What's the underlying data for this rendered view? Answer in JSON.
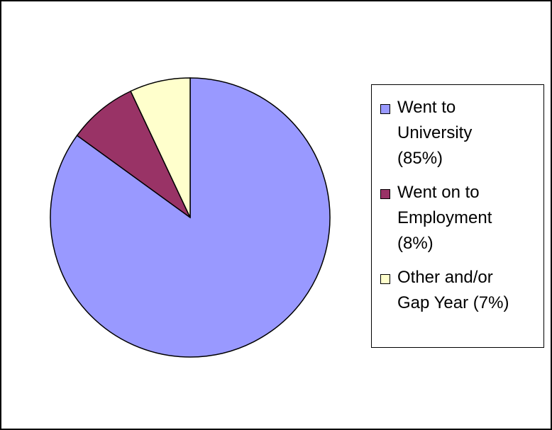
{
  "chart_data": {
    "type": "pie",
    "title": "",
    "slices": [
      {
        "label": "Went to University (85%)",
        "value": 85,
        "color": "#9999ff"
      },
      {
        "label": "Went on to Employment (8%)",
        "value": 8,
        "color": "#993366"
      },
      {
        "label": "Other and/or Gap Year (7%)",
        "value": 7,
        "color": "#ffffcc"
      }
    ],
    "legend_position": "right",
    "start_angle": "top, clockwise starting with first slice"
  },
  "legend": {
    "items": [
      {
        "label": "Went to\nUniversity\n(85%)"
      },
      {
        "label": "Went on to\nEmployment\n(8%)"
      },
      {
        "label": "Other and/or\nGap Year (7%)"
      }
    ]
  }
}
